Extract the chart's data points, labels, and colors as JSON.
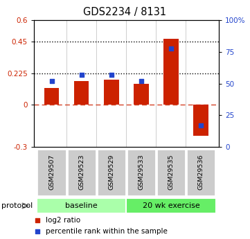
{
  "title": "GDS2234 / 8131",
  "samples": [
    "GSM29507",
    "GSM29523",
    "GSM29529",
    "GSM29533",
    "GSM29535",
    "GSM29536"
  ],
  "log2_ratio": [
    0.12,
    0.17,
    0.18,
    0.15,
    0.47,
    -0.22
  ],
  "percentile_rank": [
    52,
    57,
    57,
    52,
    78,
    17
  ],
  "bar_color": "#cc2200",
  "dot_color": "#2244cc",
  "ylim_left": [
    -0.3,
    0.6
  ],
  "ylim_right": [
    0,
    100
  ],
  "yticks_left": [
    -0.3,
    0,
    0.225,
    0.45,
    0.6
  ],
  "ytick_labels_left": [
    "-0.3",
    "0",
    "0.225",
    "0.45",
    "0.6"
  ],
  "yticks_right": [
    0,
    25,
    50,
    75,
    100
  ],
  "ytick_labels_right": [
    "0",
    "25",
    "50",
    "75",
    "100%"
  ],
  "hlines_dotted": [
    0.225,
    0.45
  ],
  "hline_dashed_color": "#cc2200",
  "groups": [
    {
      "label": "baseline",
      "indices": [
        0,
        1,
        2
      ],
      "color": "#aaffaa"
    },
    {
      "label": "20 wk exercise",
      "indices": [
        3,
        4,
        5
      ],
      "color": "#66ee66"
    }
  ],
  "legend_items": [
    {
      "label": "log2 ratio",
      "color": "#cc2200"
    },
    {
      "label": "percentile rank within the sample",
      "color": "#2244cc"
    }
  ],
  "protocol_label": "protocol",
  "bar_width": 0.5,
  "sample_box_color": "#cccccc",
  "sample_box_edge": "#ffffff"
}
